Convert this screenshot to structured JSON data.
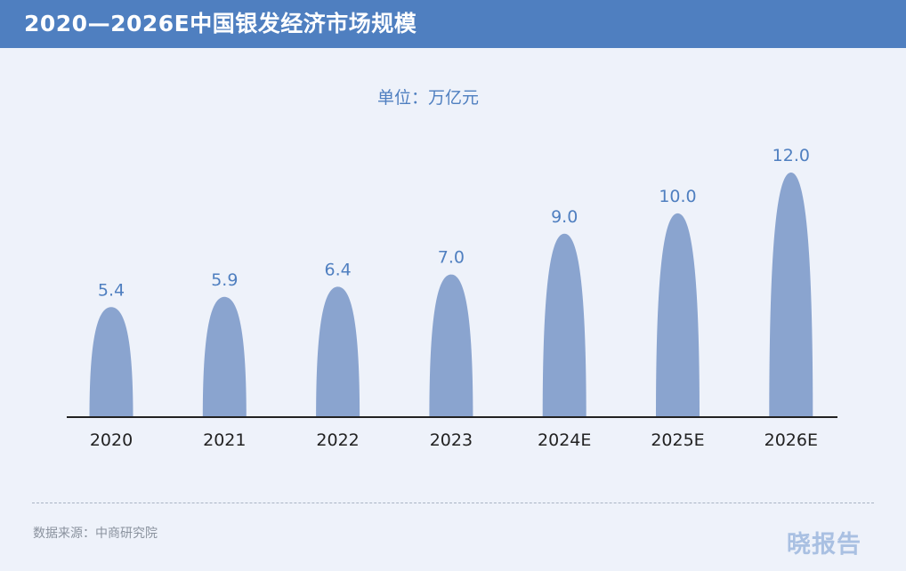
{
  "header": {
    "title": "2020—2026E中国银发经济市场规模"
  },
  "unit_label": "单位：万亿元",
  "source": "数据来源：中商研究院",
  "watermark": "晓报告",
  "colors": {
    "header": "#4f7fc0",
    "bar": "#8aa4cf",
    "label": "#4f7fc0",
    "axis": "#222222"
  },
  "chart_data": {
    "type": "bar",
    "title": "2020—2026E中国银发经济市场规模",
    "unit": "万亿元",
    "categories": [
      "2020",
      "2021",
      "2022",
      "2023",
      "2024E",
      "2025E",
      "2026E"
    ],
    "values": [
      5.4,
      5.9,
      6.4,
      7.0,
      9.0,
      10.0,
      12.0
    ],
    "value_labels": [
      "5.4",
      "5.9",
      "6.4",
      "7.0",
      "9.0",
      "10.0",
      "12.0"
    ],
    "bar_shape": "rounded-peak",
    "ylim": [
      0,
      12
    ],
    "grid": false,
    "legend": "none"
  }
}
